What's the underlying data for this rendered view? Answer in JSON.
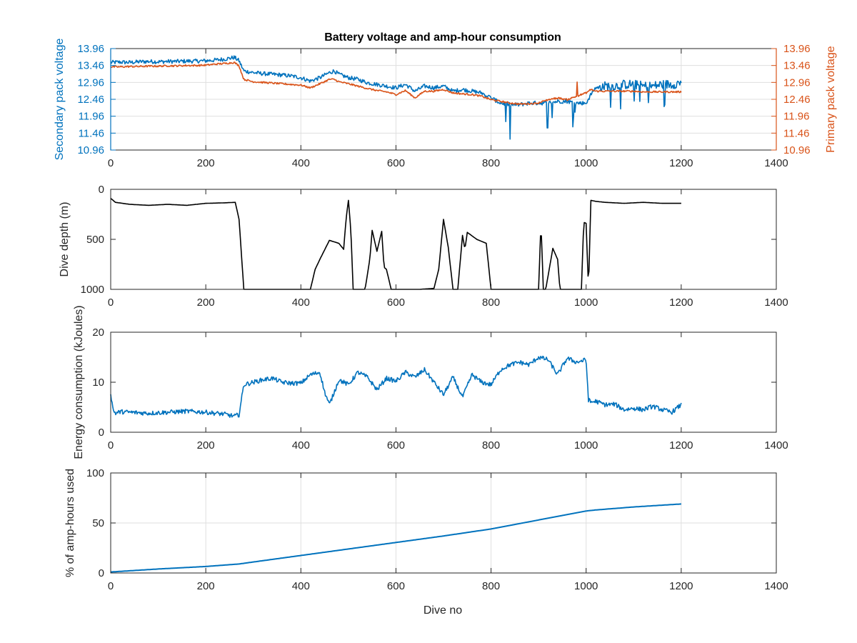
{
  "figure": {
    "title": "Battery voltage and amp-hour consumption",
    "xlabel": "Dive no"
  },
  "colors": {
    "blue": "#0072BD",
    "orange": "#D95319",
    "black": "#000000",
    "axis": "#262626",
    "grid": "#dfdfdf"
  },
  "chart_data": [
    {
      "type": "line",
      "title": "Battery voltage and amp-hour consumption",
      "xlabel": "",
      "ylabel": "Secondary pack voltage",
      "ylabel_right": "Primary pack voltage",
      "xlim": [
        0,
        1400
      ],
      "ylim": [
        10.96,
        13.96
      ],
      "xticks": [
        "0",
        "200",
        "400",
        "600",
        "800",
        "1000",
        "1200",
        "1400"
      ],
      "yticks": [
        "10.96",
        "11.46",
        "11.96",
        "12.46",
        "12.96",
        "13.46",
        "13.96"
      ],
      "grid": true,
      "series": [
        {
          "axis": "left",
          "color": "#0072BD",
          "x": [
            0,
            20,
            40,
            60,
            80,
            100,
            120,
            140,
            160,
            180,
            200,
            220,
            240,
            260,
            270,
            280,
            300,
            320,
            340,
            360,
            380,
            400,
            410,
            420,
            440,
            460,
            470,
            480,
            500,
            520,
            540,
            560,
            580,
            600,
            620,
            640,
            660,
            680,
            700,
            720,
            740,
            760,
            780,
            800,
            820,
            840,
            860,
            880,
            900,
            920,
            940,
            960,
            980,
            1000,
            1010,
            1020,
            1040,
            1060,
            1080,
            1100,
            1120,
            1140,
            1160,
            1180,
            1200
          ],
          "y": [
            13.55,
            13.56,
            13.55,
            13.57,
            13.58,
            13.57,
            13.58,
            13.58,
            13.59,
            13.59,
            13.6,
            13.62,
            13.65,
            13.7,
            13.6,
            13.3,
            13.25,
            13.22,
            13.2,
            13.18,
            13.15,
            13.1,
            13.05,
            13.0,
            13.1,
            13.25,
            13.3,
            13.2,
            13.1,
            13.05,
            12.95,
            12.9,
            12.85,
            12.8,
            12.9,
            12.7,
            12.85,
            12.8,
            12.85,
            12.7,
            12.75,
            12.7,
            12.65,
            12.5,
            12.35,
            12.3,
            12.3,
            12.35,
            12.35,
            12.35,
            12.4,
            12.4,
            12.35,
            12.35,
            12.6,
            12.8,
            12.85,
            12.85,
            12.9,
            12.9,
            12.85,
            12.85,
            12.9,
            12.9,
            12.95
          ]
        },
        {
          "axis": "right",
          "color": "#D95319",
          "x": [
            0,
            20,
            40,
            60,
            80,
            100,
            120,
            140,
            160,
            180,
            200,
            220,
            240,
            260,
            270,
            280,
            300,
            320,
            340,
            360,
            380,
            400,
            410,
            420,
            440,
            460,
            470,
            480,
            500,
            520,
            540,
            560,
            580,
            600,
            620,
            640,
            660,
            680,
            700,
            720,
            740,
            760,
            780,
            800,
            820,
            840,
            860,
            880,
            900,
            920,
            940,
            960,
            980,
            1000,
            1010,
            1020,
            1040,
            1060,
            1080,
            1100,
            1120,
            1140,
            1160,
            1180,
            1200
          ],
          "y": [
            13.42,
            13.42,
            13.43,
            13.43,
            13.44,
            13.44,
            13.45,
            13.45,
            13.46,
            13.46,
            13.47,
            13.5,
            13.52,
            13.55,
            13.45,
            13.05,
            12.98,
            12.96,
            12.94,
            12.92,
            12.9,
            12.88,
            12.84,
            12.8,
            12.92,
            13.05,
            13.05,
            12.98,
            12.92,
            12.85,
            12.78,
            12.72,
            12.68,
            12.6,
            12.72,
            12.5,
            12.7,
            12.7,
            12.75,
            12.65,
            12.62,
            12.6,
            12.55,
            12.45,
            12.4,
            12.35,
            12.32,
            12.33,
            12.35,
            12.45,
            12.5,
            12.45,
            12.55,
            12.65,
            12.75,
            12.7,
            12.7,
            12.7,
            12.7,
            12.7,
            12.68,
            12.68,
            12.68,
            12.68,
            12.68
          ]
        }
      ]
    },
    {
      "type": "line",
      "xlabel": "",
      "ylabel": "Dive depth (m)",
      "xlim": [
        0,
        1400
      ],
      "ylim": [
        1000,
        0
      ],
      "y_reversed": true,
      "xticks": [
        "0",
        "200",
        "400",
        "600",
        "800",
        "1000",
        "1200",
        "1400"
      ],
      "yticks": [
        "0",
        "500",
        "1000"
      ],
      "grid": false,
      "series": [
        {
          "color": "#000000",
          "x": [
            0,
            10,
            40,
            80,
            120,
            160,
            200,
            240,
            262,
            270,
            280,
            290,
            400,
            420,
            430,
            440,
            460,
            480,
            490,
            495,
            500,
            505,
            510,
            520,
            535,
            545,
            550,
            560,
            570,
            575,
            580,
            590,
            600,
            650,
            680,
            690,
            700,
            710,
            720,
            730,
            740,
            745,
            750,
            770,
            790,
            800,
            900,
            905,
            910,
            915,
            930,
            940,
            945,
            950,
            990,
            995,
            1000,
            1005,
            1010,
            1020,
            1040,
            1080,
            1120,
            1160,
            1200
          ],
          "y": [
            90,
            130,
            150,
            160,
            150,
            160,
            140,
            135,
            130,
            300,
            1000,
            1000,
            1000,
            1000,
            800,
            700,
            510,
            540,
            600,
            300,
            110,
            400,
            1000,
            1000,
            1000,
            700,
            410,
            620,
            420,
            780,
            800,
            1000,
            1000,
            1000,
            990,
            800,
            300,
            580,
            1000,
            1000,
            460,
            600,
            430,
            500,
            540,
            1000,
            1000,
            330,
            1000,
            1000,
            590,
            700,
            1000,
            1000,
            1000,
            330,
            340,
            1000,
            110,
            120,
            130,
            140,
            130,
            140,
            140
          ]
        }
      ]
    },
    {
      "type": "line",
      "xlabel": "",
      "ylabel": "Energy consumption (kJoules)",
      "xlim": [
        0,
        1400
      ],
      "ylim": [
        0,
        20
      ],
      "xticks": [
        "0",
        "200",
        "400",
        "600",
        "800",
        "1000",
        "1200",
        "1400"
      ],
      "yticks": [
        "0",
        "10",
        "20"
      ],
      "grid": false,
      "series": [
        {
          "color": "#0072BD",
          "x": [
            0,
            5,
            10,
            20,
            40,
            80,
            120,
            160,
            200,
            240,
            260,
            270,
            280,
            300,
            320,
            340,
            360,
            380,
            400,
            420,
            440,
            450,
            460,
            480,
            500,
            520,
            540,
            560,
            580,
            600,
            620,
            640,
            660,
            680,
            700,
            720,
            740,
            760,
            780,
            800,
            820,
            840,
            860,
            880,
            900,
            920,
            940,
            960,
            980,
            1000,
            1005,
            1010,
            1020,
            1040,
            1060,
            1080,
            1100,
            1120,
            1140,
            1160,
            1180,
            1200
          ],
          "y": [
            7.8,
            4.5,
            3.8,
            4.1,
            4.0,
            3.8,
            4.0,
            4.2,
            4.0,
            3.6,
            3.2,
            3.5,
            9.5,
            10.0,
            10.5,
            10.8,
            10.0,
            9.8,
            9.8,
            11.5,
            12.0,
            8.0,
            5.5,
            10.5,
            9.5,
            12.0,
            11.0,
            8.5,
            10.8,
            10.2,
            12.0,
            11.0,
            12.5,
            10.0,
            7.5,
            11.0,
            7.0,
            11.5,
            10.0,
            9.5,
            12.5,
            13.5,
            14.0,
            13.5,
            15.0,
            14.5,
            11.5,
            14.8,
            14.0,
            14.5,
            6.5,
            6.0,
            6.2,
            5.5,
            5.6,
            4.5,
            4.8,
            4.5,
            5.2,
            4.5,
            4.0,
            5.5
          ]
        }
      ]
    },
    {
      "type": "line",
      "xlabel": "Dive no",
      "ylabel": "% of amp-hours used",
      "xlim": [
        0,
        1400
      ],
      "ylim": [
        0,
        100
      ],
      "xticks": [
        "0",
        "200",
        "400",
        "600",
        "800",
        "1000",
        "1200",
        "1400"
      ],
      "yticks": [
        "0",
        "50",
        "100"
      ],
      "grid": true,
      "series": [
        {
          "color": "#0072BD",
          "x": [
            0,
            100,
            200,
            270,
            300,
            400,
            500,
            600,
            700,
            800,
            900,
            1000,
            1020,
            1100,
            1200
          ],
          "y": [
            1,
            4,
            6.5,
            9,
            11,
            17.5,
            24,
            30.5,
            37,
            44,
            53,
            62,
            63,
            66,
            69
          ]
        }
      ]
    }
  ]
}
